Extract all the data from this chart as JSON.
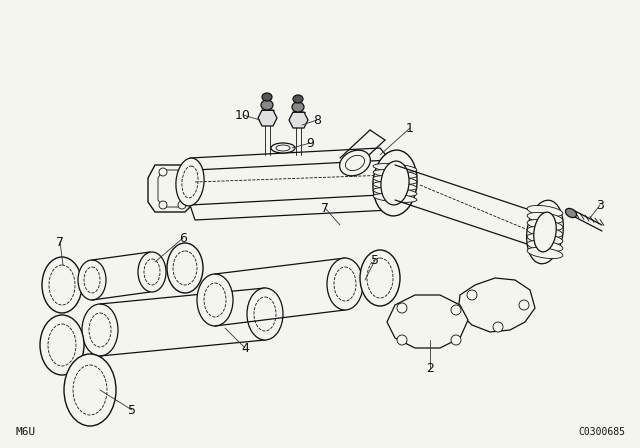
{
  "bg_color": "#f5f5f0",
  "line_color": "#111111",
  "figsize": [
    6.4,
    4.48
  ],
  "dpi": 100,
  "bottom_left_text": "M6U",
  "bottom_right_text": "C0300685",
  "title_bg": "#f0f0eb"
}
